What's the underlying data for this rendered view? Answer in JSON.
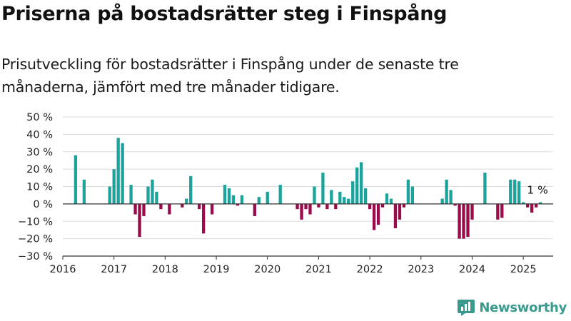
{
  "title": "Priserna på bostadsrätter steg i Finspång",
  "subtitle": "Prisutveckling för bostadsrätter i Finspång under de senaste tre månaderna, jämfört med tre månader tidigare.",
  "brand": {
    "name": "Newsworthy",
    "icon": "newsworthy-logo-icon",
    "color": "#3b9a8e"
  },
  "colors": {
    "positive": "#1ba39c",
    "negative": "#9b0b4b",
    "grid": "#dddddd",
    "axis": "#333333",
    "text": "#222222"
  },
  "chart_data": {
    "type": "bar",
    "x_unit": "month",
    "x_ticks": [
      "2016",
      "2017",
      "2018",
      "2019",
      "2020",
      "2021",
      "2022",
      "2023",
      "2024",
      "2025"
    ],
    "y_ticks": [
      "50 %",
      "40 %",
      "30 %",
      "20 %",
      "10 %",
      "0 %",
      "−10 %",
      "−20 %",
      "−30 %"
    ],
    "ylim": [
      -30,
      50
    ],
    "xlim": [
      "2016-01",
      "2025-08"
    ],
    "grid": true,
    "legend": "none",
    "annotation": {
      "text": "1 %",
      "x": "2025-04",
      "y": 1
    },
    "series": [
      {
        "points": [
          {
            "x": "2016-04",
            "y": 28
          },
          {
            "x": "2016-06",
            "y": 14
          },
          {
            "x": "2016-12",
            "y": 10
          },
          {
            "x": "2017-01",
            "y": 20
          },
          {
            "x": "2017-02",
            "y": 38
          },
          {
            "x": "2017-03",
            "y": 35
          },
          {
            "x": "2017-05",
            "y": 11
          },
          {
            "x": "2017-06",
            "y": -6
          },
          {
            "x": "2017-07",
            "y": -19
          },
          {
            "x": "2017-08",
            "y": -7
          },
          {
            "x": "2017-09",
            "y": 10
          },
          {
            "x": "2017-10",
            "y": 14
          },
          {
            "x": "2017-11",
            "y": 7
          },
          {
            "x": "2017-12",
            "y": -3
          },
          {
            "x": "2018-02",
            "y": -6
          },
          {
            "x": "2018-05",
            "y": -2
          },
          {
            "x": "2018-06",
            "y": 3
          },
          {
            "x": "2018-07",
            "y": 16
          },
          {
            "x": "2018-09",
            "y": -3
          },
          {
            "x": "2018-10",
            "y": -17
          },
          {
            "x": "2018-12",
            "y": -6
          },
          {
            "x": "2019-03",
            "y": 11
          },
          {
            "x": "2019-04",
            "y": 9
          },
          {
            "x": "2019-05",
            "y": 5
          },
          {
            "x": "2019-06",
            "y": -1
          },
          {
            "x": "2019-07",
            "y": 5
          },
          {
            "x": "2019-10",
            "y": -7
          },
          {
            "x": "2019-11",
            "y": 4
          },
          {
            "x": "2020-01",
            "y": 7
          },
          {
            "x": "2020-04",
            "y": 11
          },
          {
            "x": "2020-08",
            "y": -3
          },
          {
            "x": "2020-09",
            "y": -9
          },
          {
            "x": "2020-10",
            "y": -3
          },
          {
            "x": "2020-11",
            "y": -6
          },
          {
            "x": "2020-12",
            "y": 10
          },
          {
            "x": "2021-01",
            "y": -2
          },
          {
            "x": "2021-02",
            "y": 18
          },
          {
            "x": "2021-03",
            "y": -3
          },
          {
            "x": "2021-04",
            "y": 8
          },
          {
            "x": "2021-05",
            "y": -3
          },
          {
            "x": "2021-06",
            "y": 7
          },
          {
            "x": "2021-07",
            "y": 4
          },
          {
            "x": "2021-08",
            "y": 3
          },
          {
            "x": "2021-09",
            "y": 13
          },
          {
            "x": "2021-10",
            "y": 21
          },
          {
            "x": "2021-11",
            "y": 24
          },
          {
            "x": "2021-12",
            "y": 9
          },
          {
            "x": "2022-01",
            "y": -3
          },
          {
            "x": "2022-02",
            "y": -15
          },
          {
            "x": "2022-03",
            "y": -12
          },
          {
            "x": "2022-04",
            "y": -2
          },
          {
            "x": "2022-05",
            "y": 6
          },
          {
            "x": "2022-06",
            "y": 3
          },
          {
            "x": "2022-07",
            "y": -14
          },
          {
            "x": "2022-08",
            "y": -9
          },
          {
            "x": "2022-09",
            "y": -2
          },
          {
            "x": "2022-10",
            "y": 14
          },
          {
            "x": "2022-11",
            "y": 10
          },
          {
            "x": "2023-06",
            "y": 3
          },
          {
            "x": "2023-07",
            "y": 14
          },
          {
            "x": "2023-08",
            "y": 8
          },
          {
            "x": "2023-09",
            "y": -1
          },
          {
            "x": "2023-10",
            "y": -20
          },
          {
            "x": "2023-11",
            "y": -20
          },
          {
            "x": "2023-12",
            "y": -19
          },
          {
            "x": "2024-01",
            "y": -9
          },
          {
            "x": "2024-04",
            "y": 18
          },
          {
            "x": "2024-07",
            "y": -9
          },
          {
            "x": "2024-08",
            "y": -8
          },
          {
            "x": "2024-10",
            "y": 14
          },
          {
            "x": "2024-11",
            "y": 14
          },
          {
            "x": "2024-12",
            "y": 13
          },
          {
            "x": "2025-01",
            "y": 1
          },
          {
            "x": "2025-02",
            "y": -2
          },
          {
            "x": "2025-03",
            "y": -5
          },
          {
            "x": "2025-04",
            "y": -2
          },
          {
            "x": "2025-05",
            "y": 1
          }
        ]
      }
    ]
  }
}
